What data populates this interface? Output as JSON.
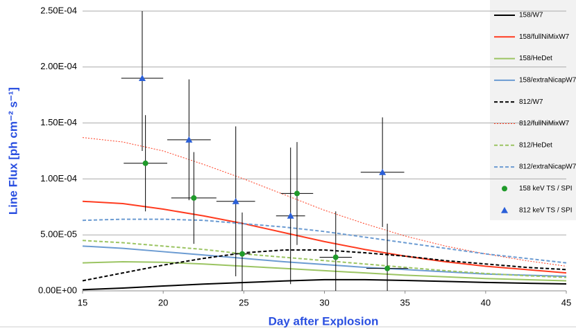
{
  "chart_data": {
    "type": "line",
    "x_label": "Day after Explosion",
    "y_label": "Line Flux [ph cm⁻² s⁻¹]",
    "x": [
      15,
      17.5,
      20,
      22.5,
      25,
      27.5,
      30,
      32.5,
      35,
      37.5,
      40,
      42.5,
      45
    ],
    "xlim": [
      15,
      45
    ],
    "xticks": [
      15,
      20,
      25,
      30,
      35,
      40,
      45
    ],
    "ylim": [
      0,
      0.00025
    ],
    "yticks": [
      {
        "value": 0,
        "label": "0.00E+00"
      },
      {
        "value": 5e-05,
        "label": "5.00E-05"
      },
      {
        "value": 0.0001,
        "label": "1.00E-04"
      },
      {
        "value": 0.00015,
        "label": "1.50E-04"
      },
      {
        "value": 0.0002,
        "label": "2.00E-04"
      },
      {
        "value": 0.00025,
        "label": "2.50E-04"
      }
    ],
    "grid": true,
    "legend": "right",
    "series": [
      {
        "name": "158/W7",
        "color": "#000000",
        "dash": "solid",
        "values": [
          1e-06,
          2.5e-06,
          4.3e-06,
          6e-06,
          7.4e-06,
          8.8e-06,
          1e-05,
          1e-05,
          9.3e-06,
          8.4e-06,
          7.5e-06,
          6.8e-06,
          6.2e-06
        ]
      },
      {
        "name": "158/fullNiMixW7",
        "color": "#ff3b1f",
        "dash": "solid",
        "values": [
          8e-05,
          7.8e-05,
          7.3e-05,
          6.7e-05,
          6e-05,
          5.2e-05,
          4.4e-05,
          3.7e-05,
          3.1e-05,
          2.6e-05,
          2.2e-05,
          1.9e-05,
          1.6e-05
        ]
      },
      {
        "name": "158/HeDet",
        "color": "#9bc462",
        "dash": "solid",
        "values": [
          2.5e-05,
          2.6e-05,
          2.55e-05,
          2.4e-05,
          2.2e-05,
          2e-05,
          1.8e-05,
          1.6e-05,
          1.4e-05,
          1.25e-05,
          1.1e-05,
          1e-05,
          9e-06
        ]
      },
      {
        "name": "158/extraNicapW7",
        "color": "#6b9bd2",
        "dash": "solid",
        "values": [
          4e-05,
          3.8e-05,
          3.5e-05,
          3.2e-05,
          2.9e-05,
          2.6e-05,
          2.35e-05,
          2.1e-05,
          1.9e-05,
          1.7e-05,
          1.5e-05,
          1.4e-05,
          1.3e-05
        ]
      },
      {
        "name": "812/W7",
        "color": "#000000",
        "dash": "dash",
        "values": [
          9e-06,
          1.6e-05,
          2.3e-05,
          2.9e-05,
          3.4e-05,
          3.65e-05,
          3.65e-05,
          3.4e-05,
          3.1e-05,
          2.7e-05,
          2.4e-05,
          2.1e-05,
          1.9e-05
        ]
      },
      {
        "name": "812/fullNiMixW7",
        "color": "#ff3b1f",
        "dash": "dot",
        "values": [
          0.000137,
          0.000133,
          0.000125,
          0.000113,
          0.0001,
          8.6e-05,
          7.2e-05,
          6e-05,
          4.9e-05,
          4e-05,
          3.3e-05,
          2.7e-05,
          2.2e-05
        ]
      },
      {
        "name": "812/HeDet",
        "color": "#9bc462",
        "dash": "dash",
        "values": [
          4.5e-05,
          4.3e-05,
          4e-05,
          3.7e-05,
          3.3e-05,
          3e-05,
          2.7e-05,
          2.4e-05,
          2.1e-05,
          1.8e-05,
          1.55e-05,
          1.35e-05,
          1.2e-05
        ]
      },
      {
        "name": "812/extraNicapW7",
        "color": "#6b9bd2",
        "dash": "dash",
        "values": [
          6.3e-05,
          6.4e-05,
          6.4e-05,
          6.3e-05,
          6e-05,
          5.7e-05,
          5.3e-05,
          4.8e-05,
          4.3e-05,
          3.8e-05,
          3.3e-05,
          2.9e-05,
          2.5e-05
        ]
      },
      {
        "name": "158 keV TS / SPI",
        "color": "#1f9a2a",
        "marker": "circle",
        "x": [
          18.9,
          21.9,
          24.9,
          28.3,
          30.7,
          33.9
        ],
        "xerr": [
          1.35,
          1.4,
          0.5,
          1,
          1,
          1.3
        ],
        "values": [
          0.000114,
          8.3e-05,
          3.3e-05,
          8.7e-05,
          3e-05,
          2e-05
        ],
        "yerr": [
          4.3e-05,
          4.1e-05,
          3.7e-05,
          4.6e-05,
          4.1e-05,
          4e-05
        ]
      },
      {
        "name": "812 keV TS / SPI",
        "color": "#2a5fd8",
        "marker": "triangle",
        "x": [
          18.7,
          21.6,
          24.5,
          27.9,
          33.6
        ],
        "xerr": [
          1.3,
          1.35,
          1.2,
          0.9,
          1.35
        ],
        "values": [
          0.00019,
          0.000135,
          8e-05,
          6.7e-05,
          0.000106
        ],
        "yerr": [
          6.5e-05,
          5.4e-05,
          6.7e-05,
          6.1e-05,
          4.9e-05
        ]
      }
    ]
  }
}
